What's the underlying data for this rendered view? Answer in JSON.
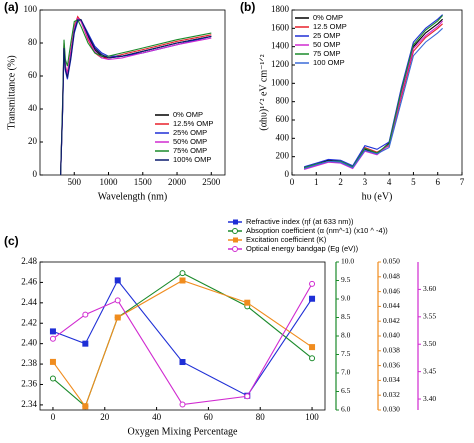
{
  "chart_data": [
    {
      "type": "line",
      "title": "(a)",
      "x_label": "Wavelength (nm)",
      "y_label": "Transmittance (%)",
      "x": [
        300,
        330,
        350,
        370,
        400,
        450,
        500,
        550,
        600,
        700,
        800,
        900,
        1000,
        1200,
        1500,
        2000,
        2500
      ],
      "xlim": [
        0,
        2700
      ],
      "xticks": [
        500,
        1000,
        1500,
        2000,
        2500
      ],
      "ylim": [
        0,
        100
      ],
      "yticks": [
        0,
        20,
        40,
        60,
        80,
        100
      ],
      "legend": "lower-right",
      "series": [
        {
          "name": "0% OMP",
          "color": "#000000",
          "values": [
            0,
            40,
            78,
            65,
            60,
            72,
            88,
            95,
            94,
            84,
            76,
            72,
            71,
            72,
            75,
            80,
            84
          ]
        },
        {
          "name": "12.5% OMP",
          "color": "#e8202a",
          "values": [
            0,
            42,
            80,
            66,
            62,
            75,
            90,
            96,
            93,
            82,
            74,
            71,
            71,
            73,
            76,
            81,
            85
          ]
        },
        {
          "name": "25% OMP",
          "color": "#1f2fd6",
          "values": [
            0,
            38,
            76,
            63,
            58,
            70,
            86,
            93,
            94,
            86,
            78,
            74,
            72,
            72,
            74,
            79,
            84
          ]
        },
        {
          "name": "50% OMP",
          "color": "#d02ad0",
          "values": [
            0,
            41,
            79,
            66,
            61,
            74,
            89,
            95,
            93,
            83,
            75,
            71,
            70,
            71,
            74,
            79,
            83
          ]
        },
        {
          "name": "75% OMP",
          "color": "#1a8a2a",
          "values": [
            0,
            44,
            82,
            70,
            66,
            80,
            93,
            94,
            90,
            80,
            74,
            72,
            72,
            74,
            77,
            82,
            86
          ]
        },
        {
          "name": "100% OMP",
          "color": "#0b1a6e",
          "values": [
            0,
            39,
            77,
            64,
            59,
            71,
            87,
            94,
            94,
            85,
            77,
            73,
            71,
            72,
            75,
            80,
            84
          ]
        }
      ]
    },
    {
      "type": "line",
      "title": "(b)",
      "x_label": "hυ (eV)",
      "y_label": "(αhυ)¹ᐟ² eV cm⁻¹ᐟ²",
      "x": [
        0.5,
        1,
        1.5,
        2,
        2.5,
        3,
        3.5,
        4,
        4.5,
        5,
        5.5,
        6,
        6.2
      ],
      "xlim": [
        0,
        7
      ],
      "xticks": [
        0,
        1,
        2,
        3,
        4,
        5,
        6,
        7
      ],
      "ylim": [
        0,
        1800
      ],
      "yticks": [
        0,
        200,
        400,
        600,
        800,
        1000,
        1200,
        1400,
        1600,
        1800
      ],
      "legend": "upper-left",
      "series": [
        {
          "name": "0% OMP",
          "color": "#000000",
          "values": [
            80,
            120,
            160,
            150,
            80,
            280,
            230,
            350,
            900,
            1400,
            1550,
            1650,
            1700
          ]
        },
        {
          "name": "12.5 OMP",
          "color": "#e8202a",
          "values": [
            70,
            110,
            150,
            140,
            90,
            300,
            250,
            320,
            850,
            1350,
            1500,
            1600,
            1650
          ]
        },
        {
          "name": "25 OMP",
          "color": "#1f2fd6",
          "values": [
            90,
            130,
            170,
            160,
            100,
            320,
            280,
            360,
            950,
            1450,
            1600,
            1700,
            1750
          ]
        },
        {
          "name": "50 OMP",
          "color": "#d02ad0",
          "values": [
            60,
            100,
            140,
            130,
            70,
            260,
            220,
            330,
            880,
            1380,
            1520,
            1620,
            1680
          ]
        },
        {
          "name": "75 OMP",
          "color": "#1a8a2a",
          "values": [
            80,
            120,
            150,
            150,
            90,
            290,
            240,
            340,
            920,
            1420,
            1580,
            1680,
            1740
          ]
        },
        {
          "name": "100 OMP",
          "color": "#3a6ad8",
          "values": [
            70,
            110,
            150,
            140,
            80,
            270,
            230,
            300,
            800,
            1300,
            1450,
            1550,
            1600
          ]
        }
      ]
    },
    {
      "type": "line",
      "title": "(c)",
      "x_label": "Oxygen Mixing Percentage",
      "x": [
        0,
        12.5,
        25,
        50,
        75,
        100
      ],
      "xlim": [
        -5,
        105
      ],
      "xticks": [
        0,
        20,
        40,
        60,
        80,
        100
      ],
      "ylim": [
        2.335,
        2.48
      ],
      "yticks": [
        2.34,
        2.36,
        2.38,
        {
          "value": 2.4,
          "label": "2.40"
        },
        2.42,
        2.44,
        2.46,
        2.48
      ],
      "y2lim": [
        6.0,
        10.0
      ],
      "y2ticks": [
        {
          "value": 6,
          "label": "6.0"
        },
        6.5,
        {
          "value": 7,
          "label": "7.0"
        },
        7.5,
        {
          "value": 8,
          "label": "8.0"
        },
        8.5,
        {
          "value": 9,
          "label": "9.0"
        },
        9.5,
        {
          "value": 10,
          "label": "10.0"
        }
      ],
      "y3lim": [
        0.03,
        0.05
      ],
      "y3ticks": [
        {
          "value": 0.03,
          "label": "0.030"
        },
        0.032,
        0.034,
        0.036,
        0.038,
        {
          "value": 0.04,
          "label": "0.040"
        },
        0.042,
        0.044,
        0.046,
        0.048,
        {
          "value": 0.05,
          "label": "0.050"
        }
      ],
      "y4lim": [
        3.38,
        3.65
      ],
      "y4ticks": [
        {
          "value": 3.4,
          "label": "3.40"
        },
        3.45,
        {
          "value": 3.5,
          "label": "3.50"
        },
        3.55,
        {
          "value": 3.6,
          "label": "3.60"
        }
      ],
      "series": [
        {
          "name": "Refractive index (ηf (at 633 nm))",
          "color": "#1f2fd6",
          "marker": "square",
          "values": [
            2.412,
            2.4,
            2.462,
            2.382,
            2.349,
            2.444
          ]
        },
        {
          "name": "Absoption coefficient (α (nm^-1) (x10 ^ -4))",
          "color": "#1a8a2a",
          "axis": "y2",
          "marker": "circle",
          "values": [
            6.85,
            6.1,
            8.5,
            9.7,
            8.8,
            7.4
          ]
        },
        {
          "name": "Excitation coefficient (K)",
          "color": "#f08c1e",
          "axis": "y3",
          "marker": "square",
          "values": [
            0.0365,
            0.0305,
            0.0425,
            0.0475,
            0.0445,
            0.0385
          ]
        },
        {
          "name": "Optical energy bandgap (Eg (eV))",
          "color": "#d02ad0",
          "axis": "y4",
          "marker": "circle",
          "values": [
            3.51,
            3.554,
            3.58,
            3.39,
            3.405,
            3.61
          ]
        }
      ]
    }
  ]
}
